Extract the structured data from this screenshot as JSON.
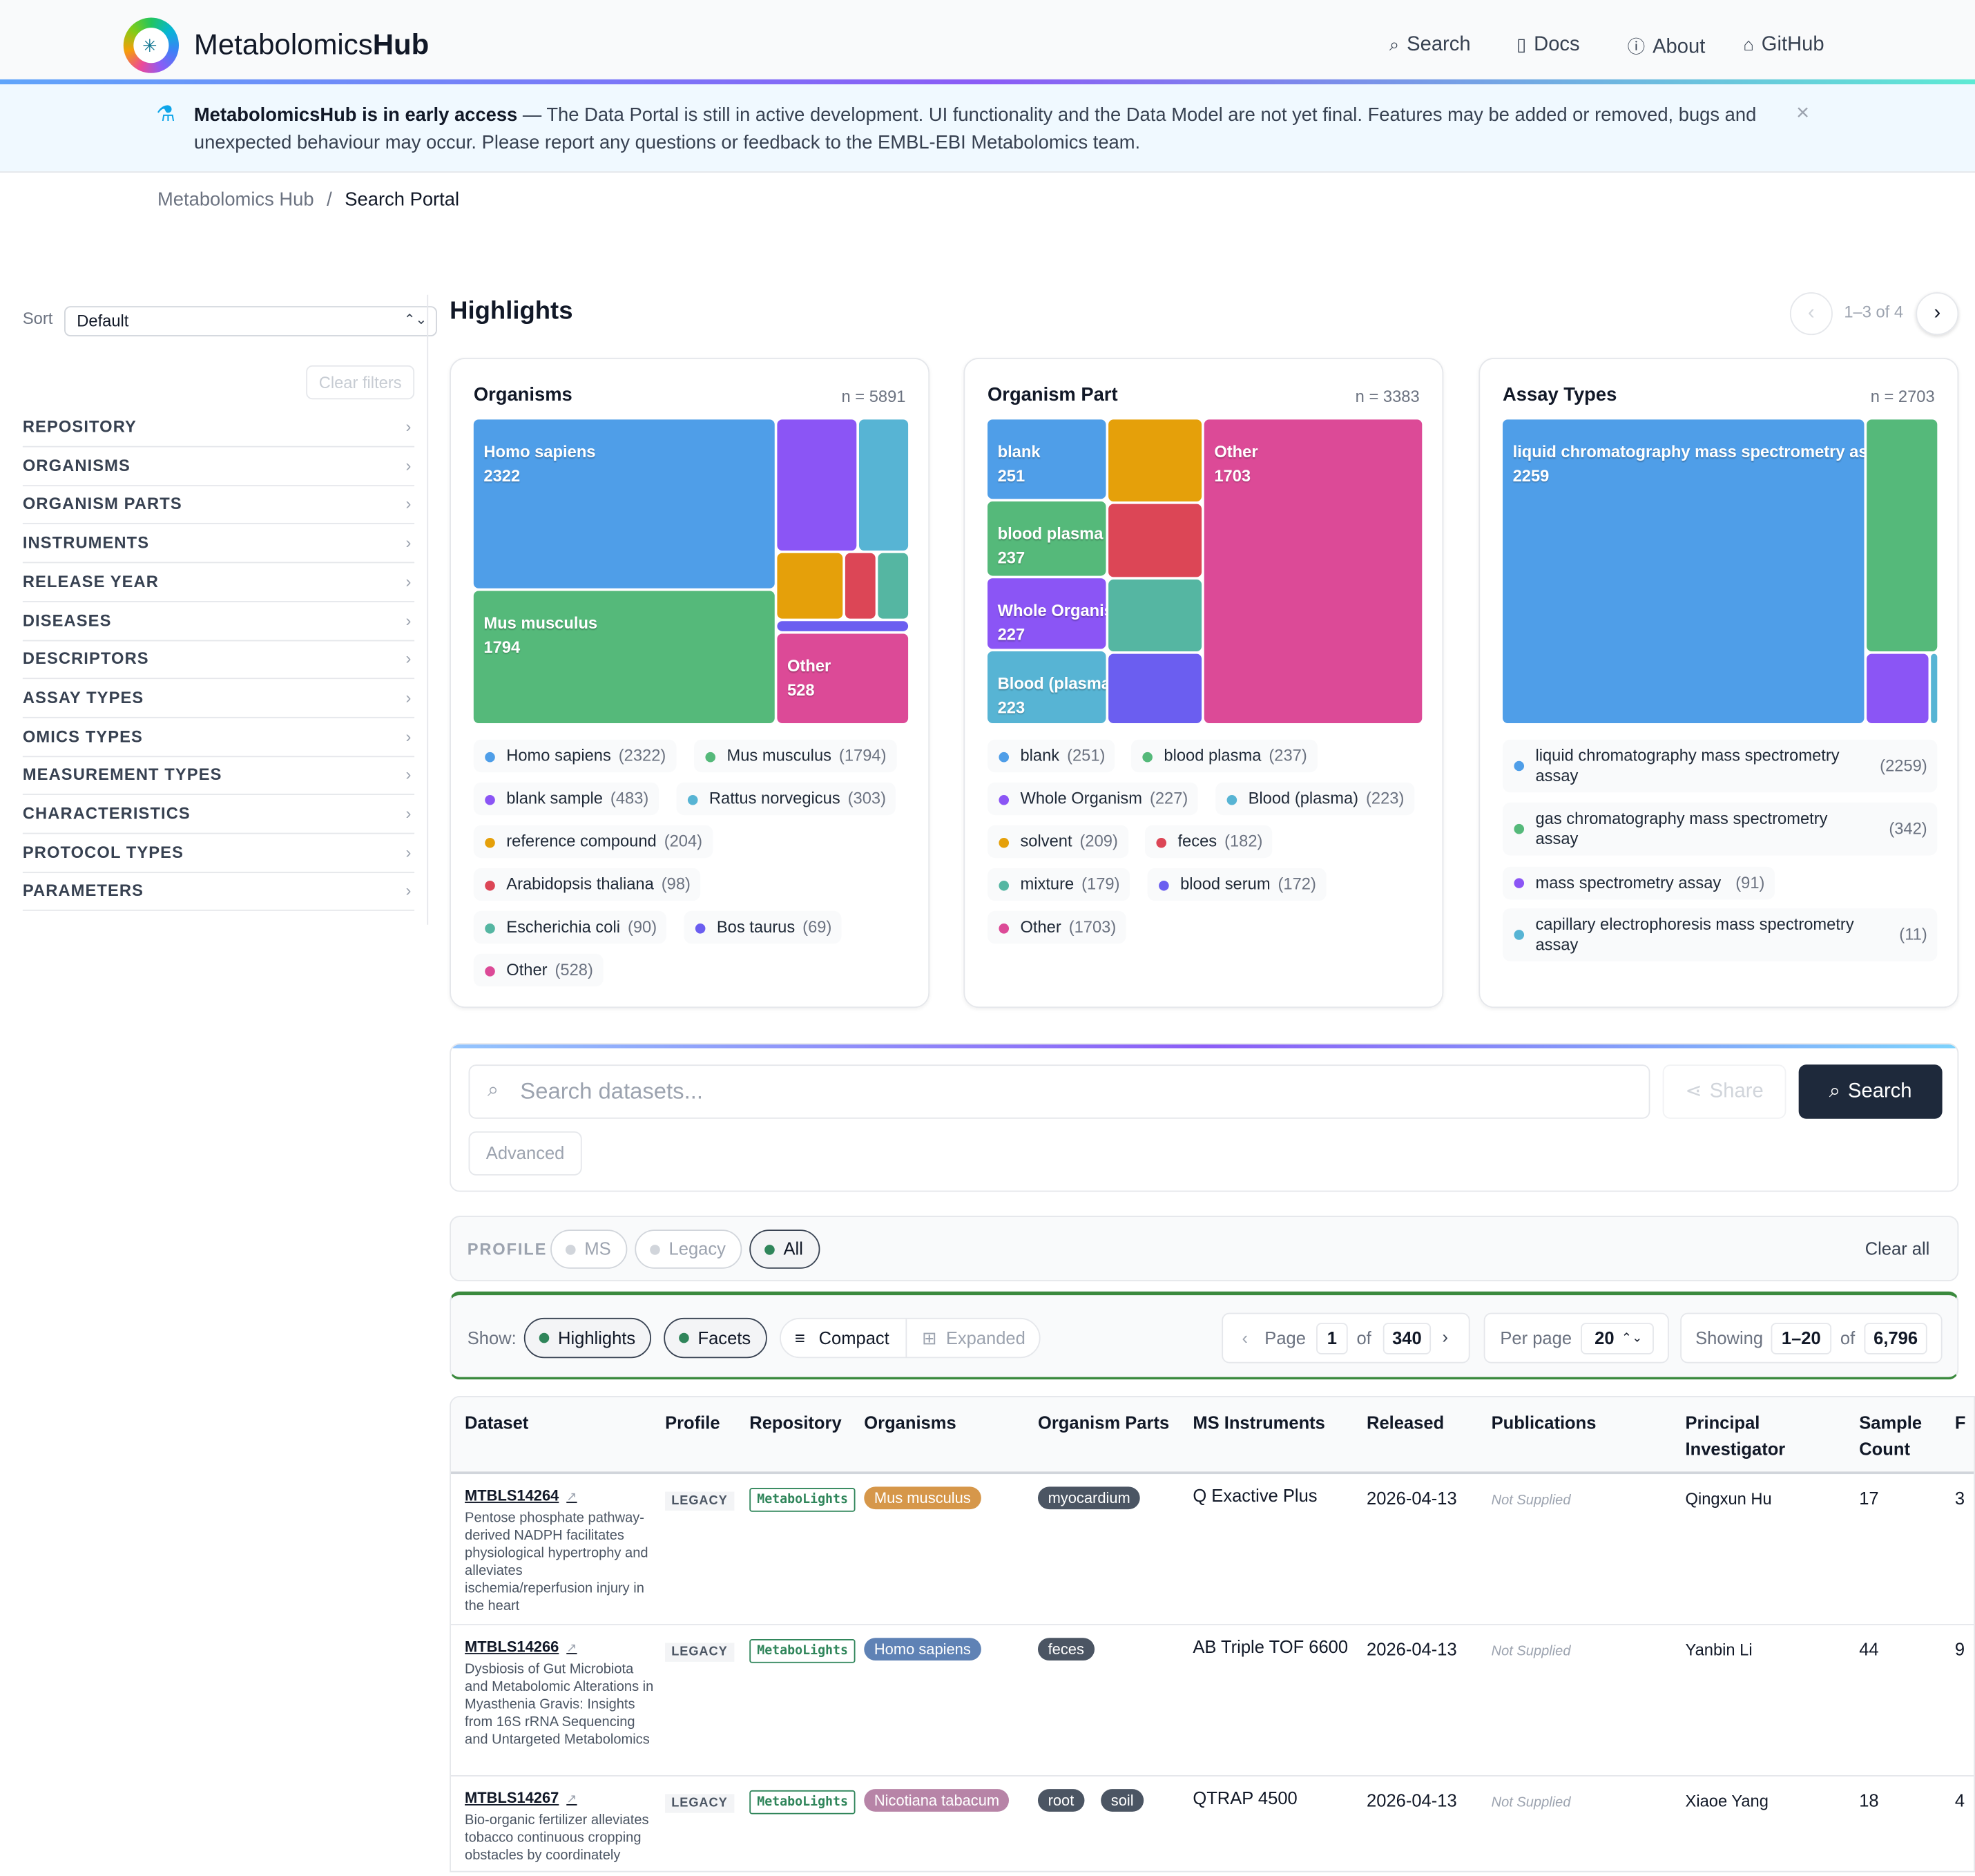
{
  "header": {
    "brand_light": "Metabolomics",
    "brand_bold": "Hub",
    "nav": [
      "Search",
      "Docs",
      "About",
      "GitHub"
    ],
    "nav_icons": [
      "search-icon",
      "book-icon",
      "info-icon",
      "github-icon"
    ]
  },
  "banner": {
    "bold": "MetabolomicsHub is in early access",
    "text": " — The Data Portal is still in active development. UI functionality and the Data Model are not yet final. Features may be added or removed, bugs and unexpected behaviour may occur. Please report any questions or feedback to the EMBL-EBI Metabolomics team.",
    "close": "×"
  },
  "breadcrumb": {
    "root": "Metabolomics Hub",
    "sep": "/",
    "current": "Search Portal"
  },
  "sidebar": {
    "sort_label": "Sort",
    "sort_value": "Default",
    "clear_filters": "Clear filters",
    "facets": [
      "REPOSITORY",
      "ORGANISMS",
      "ORGANISM PARTS",
      "INSTRUMENTS",
      "RELEASE YEAR",
      "DISEASES",
      "DESCRIPTORS",
      "ASSAY TYPES",
      "OMICS TYPES",
      "MEASUREMENT TYPES",
      "CHARACTERISTICS",
      "PROTOCOL TYPES",
      "PARAMETERS"
    ]
  },
  "highlights": {
    "title": "Highlights",
    "pager_text": "1–3 of 4",
    "prev": "‹",
    "next": "›",
    "cards": [
      {
        "title": "Organisms",
        "n": "n = 5891",
        "tiles": [
          {
            "label": "Homo sapiens",
            "value": "2322",
            "color": "#4f9ee8"
          },
          {
            "label": "Mus musculus",
            "value": "1794",
            "color": "#55b97a"
          },
          {
            "label": "Other",
            "value": "528",
            "color": "#dc4a97"
          }
        ],
        "legend": [
          {
            "label": "Homo sapiens",
            "count": "(2322)",
            "color": "#4f9ee8"
          },
          {
            "label": "Mus musculus",
            "count": "(1794)",
            "color": "#55b97a"
          },
          {
            "label": "blank sample",
            "count": "(483)",
            "color": "#8b55f5"
          },
          {
            "label": "Rattus norvegicus",
            "count": "(303)",
            "color": "#57b4d4"
          },
          {
            "label": "reference compound",
            "count": "(204)",
            "color": "#e5a00a"
          },
          {
            "label": "Arabidopsis thaliana",
            "count": "(98)",
            "color": "#dc4656"
          },
          {
            "label": "Escherichia coli",
            "count": "(90)",
            "color": "#55b6a2"
          },
          {
            "label": "Bos taurus",
            "count": "(69)",
            "color": "#6b5ef0"
          },
          {
            "label": "Other",
            "count": "(528)",
            "color": "#dc4a97"
          }
        ]
      },
      {
        "title": "Organism Part",
        "n": "n = 3383",
        "tiles": [
          {
            "label": "blank",
            "value": "251",
            "color": "#4f9ee8"
          },
          {
            "label": "blood plasma",
            "value": "237",
            "color": "#55b97a"
          },
          {
            "label": "Whole Organism",
            "value": "227",
            "color": "#8b55f5"
          },
          {
            "label": "Blood (plasma)",
            "value": "223",
            "color": "#57b4d4"
          },
          {
            "label": "Other",
            "value": "1703",
            "color": "#dc4a97"
          }
        ],
        "legend": [
          {
            "label": "blank",
            "count": "(251)",
            "color": "#4f9ee8"
          },
          {
            "label": "blood plasma",
            "count": "(237)",
            "color": "#55b97a"
          },
          {
            "label": "Whole Organism",
            "count": "(227)",
            "color": "#8b55f5"
          },
          {
            "label": "Blood (plasma)",
            "count": "(223)",
            "color": "#57b4d4"
          },
          {
            "label": "solvent",
            "count": "(209)",
            "color": "#e5a00a"
          },
          {
            "label": "feces",
            "count": "(182)",
            "color": "#dc4656"
          },
          {
            "label": "mixture",
            "count": "(179)",
            "color": "#55b6a2"
          },
          {
            "label": "blood serum",
            "count": "(172)",
            "color": "#6b5ef0"
          },
          {
            "label": "Other",
            "count": "(1703)",
            "color": "#dc4a97"
          }
        ]
      },
      {
        "title": "Assay Types",
        "n": "n = 2703",
        "tiles": [
          {
            "label": "liquid chromatography mass spectrometry assay",
            "value": "2259",
            "color": "#4f9ee8"
          }
        ],
        "legend": [
          {
            "label": "liquid chromatography mass spectrometry assay",
            "count": "(2259)",
            "color": "#4f9ee8"
          },
          {
            "label": "gas chromatography mass spectrometry assay",
            "count": "(342)",
            "color": "#55b97a"
          },
          {
            "label": "mass spectrometry assay",
            "count": "(91)",
            "color": "#8b55f5"
          },
          {
            "label": "capillary electrophoresis mass spectrometry assay",
            "count": "(11)",
            "color": "#57b4d4"
          }
        ]
      }
    ]
  },
  "search": {
    "placeholder": "Search datasets...",
    "share": "Share",
    "button": "Search",
    "advanced": "Advanced"
  },
  "profile": {
    "label": "PROFILE",
    "options": [
      "MS",
      "Legacy",
      "All"
    ],
    "selected": "All",
    "clear_all": "Clear all"
  },
  "toolbar": {
    "show_label": "Show:",
    "highlights": "Highlights",
    "facets": "Facets",
    "compact": "Compact",
    "expanded": "Expanded",
    "page_label": "Page",
    "page": "1",
    "of": "of",
    "total_pages": "340",
    "per_page_label": "Per page",
    "per_page": "20",
    "showing_label": "Showing",
    "showing_range": "1–20",
    "total": "6,796"
  },
  "table": {
    "columns": [
      "Dataset",
      "Profile",
      "Repository",
      "Organisms",
      "Organism Parts",
      "MS Instruments",
      "Released",
      "Publications",
      "Principal Investigator",
      "Sample Count",
      "F"
    ],
    "columns_line2": [
      "",
      "",
      "",
      "",
      "",
      "",
      "",
      "",
      "Investigator",
      "Count",
      "C"
    ],
    "rows": [
      {
        "id": "MTBLS14264",
        "desc": "Pentose phosphate pathway-derived NADPH facilitates physiological hypertrophy and alleviates ischemia/reperfusion injury in the heart",
        "profile": "LEGACY",
        "repo": "MetaboLights",
        "organism": "Mus musculus",
        "organism_color": "#d6974a",
        "parts": [
          "myocardium"
        ],
        "instrument": "Q Exactive Plus",
        "released": "2026-04-13",
        "publications": "Not Supplied",
        "pi": "Qingxun Hu",
        "samples": "17",
        "extra": "3"
      },
      {
        "id": "MTBLS14266",
        "desc": "Dysbiosis of Gut Microbiota and Metabolomic Alterations in Myasthenia Gravis: Insights from 16S rRNA Sequencing and Untargeted Metabolomics",
        "profile": "LEGACY",
        "repo": "MetaboLights",
        "organism": "Homo sapiens",
        "organism_color": "#5f82b5",
        "parts": [
          "feces"
        ],
        "instrument": "AB Triple TOF 6600",
        "released": "2026-04-13",
        "publications": "Not Supplied",
        "pi": "Yanbin Li",
        "samples": "44",
        "extra": "9"
      },
      {
        "id": "MTBLS14267",
        "desc": "Bio-organic fertilizer alleviates tobacco continuous cropping obstacles by coordinately",
        "profile": "LEGACY",
        "repo": "MetaboLights",
        "organism": "Nicotiana tabacum",
        "organism_color": "#b784a7",
        "parts": [
          "root",
          "soil"
        ],
        "instrument": "QTRAP 4500",
        "released": "2026-04-13",
        "publications": "Not Supplied",
        "pi": "Xiaoe Yang",
        "samples": "18",
        "extra": "4"
      }
    ]
  }
}
